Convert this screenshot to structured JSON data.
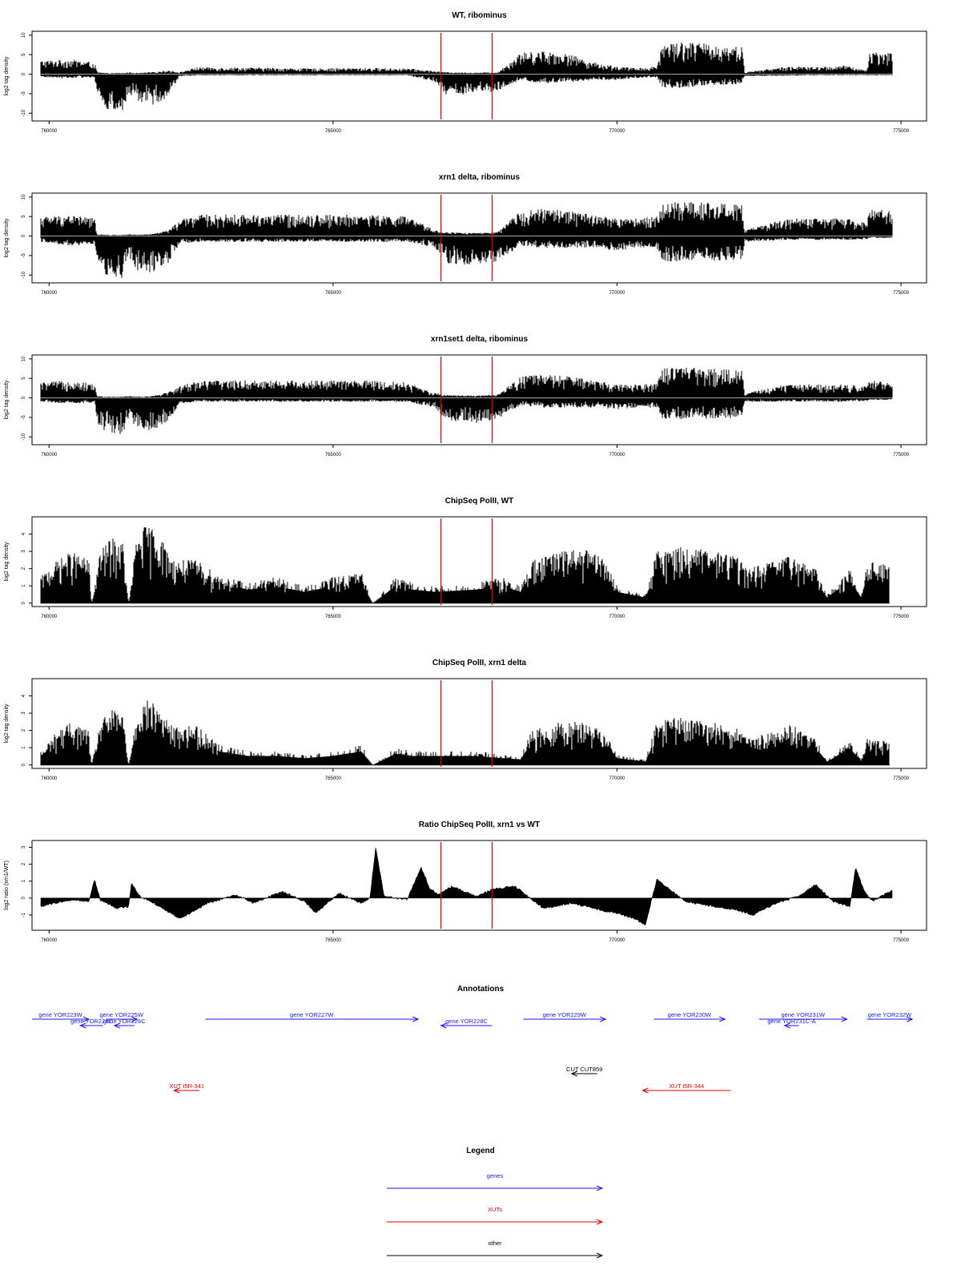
{
  "chart_data": [
    {
      "type": "bar",
      "panel_id": "wt-ribominus",
      "title": "WT, ribominus",
      "ylabel": "log2 tag density",
      "xlim": [
        759700,
        775450
      ],
      "ylim": [
        -12,
        11
      ],
      "xticks": [
        760000,
        765000,
        770000,
        775000
      ],
      "xtick_labels": [
        "760000",
        "765000",
        "770000",
        "775000"
      ],
      "yticks": [
        -10,
        -5,
        0,
        5,
        10
      ],
      "ytick_labels": [
        "-10",
        "-5",
        "0",
        "5",
        "10"
      ],
      "marker_lines": [
        766900,
        767800
      ],
      "marker_color": "#e00000",
      "profile": {
        "x": [
          759850,
          760400,
          760800,
          760850,
          761000,
          761300,
          761400,
          761550,
          761800,
          762100,
          762300,
          762600,
          763500,
          764500,
          765500,
          766300,
          766800,
          767000,
          767500,
          767900,
          768300,
          768700,
          769200,
          769600,
          770000,
          770300,
          770700,
          770800,
          771200,
          771700,
          772200,
          772250,
          773000,
          773500,
          774000,
          774400,
          774450,
          774850
        ],
        "pos_max": [
          3.5,
          3.8,
          3.0,
          0.5,
          0.3,
          0.3,
          0.5,
          0.3,
          0.5,
          1.0,
          0.5,
          1.8,
          1.7,
          1.5,
          1.6,
          1.5,
          0.8,
          0.5,
          0.4,
          0.5,
          5.5,
          6.0,
          5.0,
          3.0,
          2.0,
          1.6,
          2.0,
          8.0,
          8.5,
          7.5,
          7.0,
          0.5,
          2.0,
          1.8,
          2.2,
          1.0,
          6.0,
          5.5
        ],
        "neg_min": [
          -0.8,
          -1.0,
          -0.8,
          -6.0,
          -9.0,
          -10.0,
          -5.0,
          -7.0,
          -8.0,
          -6.0,
          -0.5,
          -0.3,
          -0.3,
          -0.3,
          -0.3,
          -0.3,
          -2.0,
          -5.5,
          -5.0,
          -4.5,
          -1.5,
          -2.5,
          -2.0,
          -1.5,
          -1.5,
          -1.0,
          -0.8,
          -3.5,
          -3.5,
          -3.0,
          -2.5,
          -0.5,
          -0.4,
          -0.3,
          -0.3,
          -0.3,
          -0.3,
          -0.3
        ]
      }
    },
    {
      "type": "bar",
      "panel_id": "xrn1-ribominus",
      "title": "xrn1 delta, ribominus",
      "ylabel": "log2 tag density",
      "xlim": [
        759700,
        775450
      ],
      "ylim": [
        -12,
        11
      ],
      "xticks": [
        760000,
        765000,
        770000,
        775000
      ],
      "xtick_labels": [
        "760000",
        "765000",
        "770000",
        "775000"
      ],
      "yticks": [
        -10,
        -5,
        0,
        5,
        10
      ],
      "ytick_labels": [
        "-10",
        "-5",
        "0",
        "5",
        "10"
      ],
      "marker_lines": [
        766900,
        767800
      ],
      "marker_color": "#e00000",
      "profile": {
        "x": [
          759850,
          760400,
          760800,
          760850,
          761000,
          761300,
          761400,
          761550,
          761800,
          762100,
          762300,
          762600,
          763500,
          764500,
          765500,
          766300,
          766800,
          767000,
          767500,
          767900,
          768300,
          768700,
          769200,
          769600,
          770000,
          770300,
          770700,
          770800,
          771200,
          771700,
          772200,
          772250,
          773000,
          773500,
          774000,
          774400,
          774450,
          774850
        ],
        "pos_max": [
          5.0,
          5.5,
          4.5,
          0.5,
          0.3,
          0.3,
          0.5,
          0.3,
          0.5,
          1.5,
          4.0,
          5.5,
          5.5,
          5.5,
          5.5,
          5.0,
          1.5,
          1.0,
          0.8,
          1.0,
          6.5,
          7.0,
          6.5,
          5.5,
          4.5,
          4.5,
          5.0,
          8.5,
          9.0,
          8.5,
          8.0,
          1.5,
          4.5,
          4.5,
          4.5,
          3.5,
          7.0,
          6.5
        ],
        "neg_min": [
          -1.5,
          -2.5,
          -2.0,
          -7.0,
          -10.0,
          -11.0,
          -5.0,
          -9.0,
          -9.5,
          -7.0,
          -2.0,
          -1.5,
          -1.5,
          -1.5,
          -1.5,
          -1.5,
          -3.0,
          -7.0,
          -7.5,
          -6.5,
          -2.5,
          -3.0,
          -3.0,
          -3.0,
          -4.0,
          -3.0,
          -3.0,
          -6.5,
          -6.5,
          -6.5,
          -6.0,
          -1.5,
          -1.0,
          -1.0,
          -1.0,
          -0.8,
          -0.5,
          -0.5
        ]
      }
    },
    {
      "type": "bar",
      "panel_id": "xrn1set1-ribominus",
      "title": "xrn1set1 delta, ribominus",
      "ylabel": "log2 tag density",
      "xlim": [
        759700,
        775450
      ],
      "ylim": [
        -12,
        11
      ],
      "xticks": [
        760000,
        765000,
        770000,
        775000
      ],
      "xtick_labels": [
        "760000",
        "765000",
        "770000",
        "775000"
      ],
      "yticks": [
        -10,
        -5,
        0,
        5,
        10
      ],
      "ytick_labels": [
        "-10",
        "-5",
        "0",
        "5",
        "10"
      ],
      "marker_lines": [
        766900,
        767800
      ],
      "marker_color": "#e00000",
      "profile": {
        "x": [
          759850,
          760400,
          760800,
          760850,
          761000,
          761300,
          761400,
          761550,
          761800,
          762100,
          762300,
          762600,
          763500,
          764500,
          765500,
          766300,
          766800,
          767000,
          767500,
          767900,
          768300,
          768700,
          769200,
          769600,
          770000,
          770300,
          770700,
          770800,
          771200,
          771700,
          772200,
          772250,
          773000,
          773500,
          774000,
          774400,
          774450,
          774850
        ],
        "pos_max": [
          4.0,
          4.5,
          3.5,
          0.5,
          0.3,
          0.3,
          0.5,
          0.3,
          0.5,
          1.5,
          3.0,
          4.5,
          4.5,
          4.5,
          4.5,
          4.0,
          1.2,
          0.8,
          0.6,
          0.8,
          5.5,
          6.0,
          5.5,
          4.5,
          3.5,
          3.5,
          4.0,
          7.5,
          8.0,
          7.5,
          7.0,
          1.2,
          3.5,
          3.5,
          3.5,
          3.0,
          4.5,
          4.0
        ],
        "neg_min": [
          -1.0,
          -1.5,
          -1.2,
          -6.5,
          -9.0,
          -10.0,
          -5.0,
          -8.0,
          -8.5,
          -6.0,
          -1.5,
          -1.0,
          -1.0,
          -1.0,
          -1.0,
          -1.0,
          -2.5,
          -6.0,
          -6.5,
          -5.5,
          -2.0,
          -2.5,
          -2.5,
          -2.5,
          -3.0,
          -2.5,
          -2.5,
          -5.5,
          -5.5,
          -5.5,
          -5.0,
          -1.0,
          -1.0,
          -1.0,
          -1.0,
          -0.8,
          -0.5,
          -0.5
        ]
      }
    },
    {
      "type": "bar",
      "panel_id": "chipseq-wt",
      "title": "ChipSeq PolII, WT",
      "ylabel": "log2 tag density",
      "xlim": [
        759700,
        775450
      ],
      "ylim": [
        -0.2,
        5.0
      ],
      "xticks": [
        760000,
        765000,
        770000,
        775000
      ],
      "xtick_labels": [
        "760000",
        "765000",
        "770000",
        "775000"
      ],
      "yticks": [
        0,
        1,
        2,
        3,
        4
      ],
      "ytick_labels": [
        "0",
        "1",
        "2",
        "3",
        "4"
      ],
      "marker_lines": [
        766900,
        767800
      ],
      "marker_color": "#e00000",
      "profile": {
        "x": [
          759850,
          760150,
          760400,
          760700,
          760750,
          760900,
          761100,
          761300,
          761400,
          761550,
          761700,
          761900,
          762100,
          762200,
          762600,
          763000,
          763500,
          764000,
          764500,
          765000,
          765500,
          765700,
          766100,
          766400,
          766800,
          767500,
          768000,
          768300,
          768500,
          769000,
          769400,
          769800,
          770000,
          770500,
          770700,
          771000,
          771400,
          771800,
          772100,
          772300,
          772800,
          773100,
          773500,
          773700,
          774100,
          774300,
          774400,
          774800
        ],
        "top": [
          1.5,
          2.5,
          3.0,
          2.5,
          0.0,
          3.0,
          3.8,
          3.5,
          0.0,
          4.0,
          4.5,
          4.3,
          3.0,
          2.5,
          2.5,
          1.6,
          1.2,
          1.5,
          1.0,
          1.5,
          1.8,
          0.0,
          1.5,
          1.2,
          1.0,
          1.2,
          1.5,
          1.0,
          2.5,
          3.0,
          3.2,
          2.5,
          1.0,
          0.5,
          3.0,
          3.3,
          3.2,
          3.0,
          2.8,
          2.0,
          2.5,
          2.8,
          2.0,
          0.5,
          2.0,
          0.5,
          2.5,
          2.2
        ]
      }
    },
    {
      "type": "bar",
      "panel_id": "chipseq-xrn1",
      "title": "ChipSeq PolII, xrn1 delta",
      "ylabel": "log2 tag density",
      "xlim": [
        759700,
        775450
      ],
      "ylim": [
        -0.2,
        5.0
      ],
      "xticks": [
        760000,
        765000,
        770000,
        775000
      ],
      "xtick_labels": [
        "760000",
        "765000",
        "770000",
        "775000"
      ],
      "yticks": [
        0,
        1,
        2,
        3,
        4
      ],
      "ytick_labels": [
        "0",
        "1",
        "2",
        "3",
        "4"
      ],
      "marker_lines": [
        766900,
        767800
      ],
      "marker_color": "#e00000",
      "profile": {
        "x": [
          759850,
          760150,
          760400,
          760700,
          760750,
          760900,
          761100,
          761300,
          761400,
          761550,
          761700,
          761900,
          762100,
          762200,
          762600,
          763000,
          763500,
          764000,
          764500,
          765000,
          765500,
          765700,
          766100,
          766400,
          766800,
          767500,
          768000,
          768300,
          768500,
          769000,
          769400,
          769800,
          770000,
          770500,
          770700,
          771000,
          771400,
          771800,
          772100,
          772300,
          772800,
          773100,
          773500,
          773700,
          774100,
          774300,
          774400,
          774800
        ],
        "top": [
          0.8,
          2.0,
          2.5,
          2.0,
          0.0,
          2.5,
          3.2,
          3.0,
          0.0,
          3.2,
          3.8,
          3.5,
          2.5,
          2.2,
          2.3,
          1.2,
          0.8,
          0.8,
          0.6,
          0.8,
          1.2,
          0.0,
          1.0,
          0.8,
          0.8,
          0.8,
          0.6,
          0.5,
          2.0,
          2.5,
          2.5,
          2.0,
          0.6,
          0.3,
          2.5,
          2.8,
          2.6,
          2.4,
          2.2,
          1.5,
          2.0,
          2.4,
          1.5,
          0.3,
          1.5,
          0.3,
          1.5,
          1.4
        ]
      }
    },
    {
      "type": "area",
      "panel_id": "ratio",
      "title": "Ratio ChipSeq PolII, xrn1 vs WT",
      "ylabel": "log2 ratio (xrn1/WT)",
      "xlim": [
        759700,
        775450
      ],
      "ylim": [
        -1.9,
        3.4
      ],
      "xticks": [
        760000,
        765000,
        770000,
        775000
      ],
      "xtick_labels": [
        "760000",
        "765000",
        "770000",
        "775000"
      ],
      "yticks": [
        -1,
        0,
        1,
        2,
        3
      ],
      "ytick_labels": [
        "-1",
        "0",
        "1",
        "2",
        "3"
      ],
      "marker_lines": [
        766900,
        767800
      ],
      "marker_color": "#e00000",
      "profile": {
        "x": [
          759850,
          760100,
          760400,
          760700,
          760800,
          760900,
          761200,
          761400,
          761450,
          761600,
          761900,
          762300,
          762800,
          763300,
          763600,
          764100,
          764500,
          764700,
          765100,
          765500,
          765650,
          765750,
          765900,
          766300,
          766550,
          766700,
          766850,
          767100,
          767500,
          767800,
          768200,
          768700,
          769200,
          769700,
          770000,
          770300,
          770500,
          770700,
          771200,
          771700,
          772100,
          772400,
          772800,
          773200,
          773500,
          773800,
          774100,
          774200,
          774350,
          774500,
          774850
        ],
        "y": [
          -0.5,
          -0.3,
          -0.1,
          -0.2,
          1.1,
          -0.1,
          -0.6,
          -0.5,
          0.9,
          0.1,
          -0.4,
          -1.2,
          -0.3,
          0.2,
          -0.3,
          0.4,
          -0.2,
          -0.9,
          0.3,
          -0.3,
          0.0,
          3.0,
          0.1,
          -0.1,
          1.8,
          0.6,
          0.2,
          0.7,
          0.1,
          0.5,
          0.7,
          -0.6,
          -0.3,
          -0.7,
          -0.9,
          -1.2,
          -1.6,
          1.1,
          -0.2,
          -0.5,
          -0.7,
          -1.0,
          -0.3,
          0.1,
          0.8,
          -0.2,
          -0.5,
          1.8,
          0.4,
          -0.2,
          0.5
        ]
      }
    }
  ],
  "annotations": {
    "title": "Annotations",
    "features": [
      {
        "label": "gene YOR223W",
        "start": 759700,
        "end": 760700,
        "strand": "+",
        "row": 0,
        "type": "gene"
      },
      {
        "label": "gene YOR224C",
        "start": 760550,
        "end": 760950,
        "strand": "-",
        "row": 1,
        "type": "gene"
      },
      {
        "label": "gene YOR225W",
        "start": 761000,
        "end": 761550,
        "strand": "+",
        "row": 0,
        "type": "gene"
      },
      {
        "label": "gene YOR226C",
        "start": 761150,
        "end": 761500,
        "strand": "-",
        "row": 1,
        "type": "gene"
      },
      {
        "label": "gene YOR227W",
        "start": 762750,
        "end": 766500,
        "strand": "+",
        "row": 0,
        "type": "gene"
      },
      {
        "label": "gene YOR228C",
        "start": 766900,
        "end": 767800,
        "strand": "-",
        "row": 1,
        "type": "gene"
      },
      {
        "label": "gene YOR229W",
        "start": 768350,
        "end": 769800,
        "strand": "+",
        "row": 0,
        "type": "gene"
      },
      {
        "label": "gene YOR230W",
        "start": 770650,
        "end": 771900,
        "strand": "+",
        "row": 0,
        "type": "gene"
      },
      {
        "label": "gene YOR231W",
        "start": 772500,
        "end": 774050,
        "strand": "+",
        "row": 0,
        "type": "gene"
      },
      {
        "label": "gene YOR231C-A",
        "start": 772950,
        "end": 773200,
        "strand": "-",
        "row": 1,
        "type": "gene"
      },
      {
        "label": "gene YOR232W",
        "start": 774400,
        "end": 775200,
        "strand": "+",
        "row": 0,
        "type": "gene"
      },
      {
        "label": "CUT CUT859",
        "start": 769200,
        "end": 769650,
        "strand": "-",
        "row": 2,
        "type": "other"
      },
      {
        "label": "XUT t5R-341",
        "start": 762200,
        "end": 762650,
        "strand": "-",
        "row": 3,
        "type": "xut"
      },
      {
        "label": "XUT t5R-344",
        "start": 770450,
        "end": 772000,
        "strand": "-",
        "row": 3,
        "type": "xut"
      }
    ]
  },
  "legend": {
    "title": "Legend",
    "entries": [
      {
        "label": "genes",
        "color": "#1a1aff"
      },
      {
        "label": "XUTs",
        "color": "#e00000"
      },
      {
        "label": "other",
        "color": "#000000"
      }
    ]
  },
  "colors": {
    "gene": "#1a1aff",
    "xut": "#e00000",
    "other": "#000000",
    "bars": "#000000",
    "zero_line": "#9a9a9a"
  }
}
